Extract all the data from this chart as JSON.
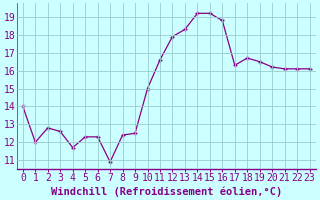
{
  "x": [
    0,
    1,
    2,
    3,
    4,
    5,
    6,
    7,
    8,
    9,
    10,
    11,
    12,
    13,
    14,
    15,
    16,
    17,
    18,
    19,
    20,
    21,
    22,
    23
  ],
  "y": [
    14.0,
    12.0,
    12.8,
    12.6,
    11.7,
    12.3,
    12.3,
    10.9,
    12.4,
    12.5,
    15.0,
    16.6,
    17.9,
    18.3,
    19.2,
    19.2,
    18.8,
    16.3,
    16.7,
    16.5,
    16.2,
    16.1,
    16.1,
    16.1
  ],
  "line_color": "#880088",
  "marker": "+",
  "marker_size": 3,
  "bg_color": "#ccffff",
  "grid_color": "#99cccc",
  "xlabel": "Windchill (Refroidissement éolien,°C)",
  "xlabel_fontsize": 7.5,
  "xlabel_color": "#880088",
  "ylim": [
    10.5,
    19.75
  ],
  "xlim": [
    -0.5,
    23.5
  ],
  "tick_fontsize": 7,
  "tick_color": "#880088",
  "spine_color": "#880088"
}
